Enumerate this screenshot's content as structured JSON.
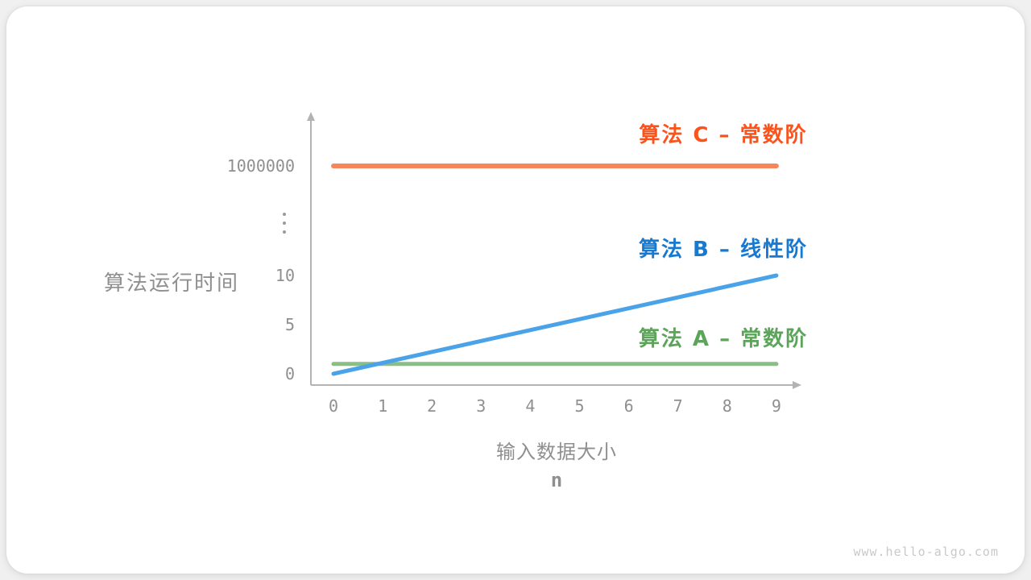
{
  "page": {
    "background_color": "#F0F0F0",
    "card_color": "#FFFFFF",
    "watermark": "www.hello-algo.com"
  },
  "chart_data": {
    "type": "line",
    "grid": false,
    "x_axis": {
      "title": "输入数据大小",
      "variable": "n",
      "range": [
        0,
        9
      ],
      "ticks": [
        "0",
        "1",
        "2",
        "3",
        "4",
        "5",
        "6",
        "7",
        "8",
        "9"
      ]
    },
    "y_axis": {
      "title": "算法运行时间",
      "broken_axis": true,
      "ticks": [
        {
          "label": "0",
          "value": 0
        },
        {
          "label": "5",
          "value": 5
        },
        {
          "label": "10",
          "value": 10
        },
        {
          "label": "⋮",
          "break": true
        },
        {
          "label": "1000000",
          "value": 1000000
        }
      ]
    },
    "series": [
      {
        "name": "算法 C – 常数阶",
        "color": "#F7875A",
        "label_color": "#FA541C",
        "points": [
          [
            0,
            1000000
          ],
          [
            9,
            1000000
          ]
        ]
      },
      {
        "name": "算法 B – 线性阶",
        "color": "#4AA3E8",
        "label_color": "#1879D0",
        "points": [
          [
            0,
            0
          ],
          [
            9,
            10
          ]
        ]
      },
      {
        "name": "算法 A – 常数阶",
        "color": "#87BF85",
        "label_color": "#5CA45A",
        "points": [
          [
            0,
            1
          ],
          [
            9,
            1
          ]
        ]
      }
    ],
    "legend_position": "right-of-lines"
  }
}
